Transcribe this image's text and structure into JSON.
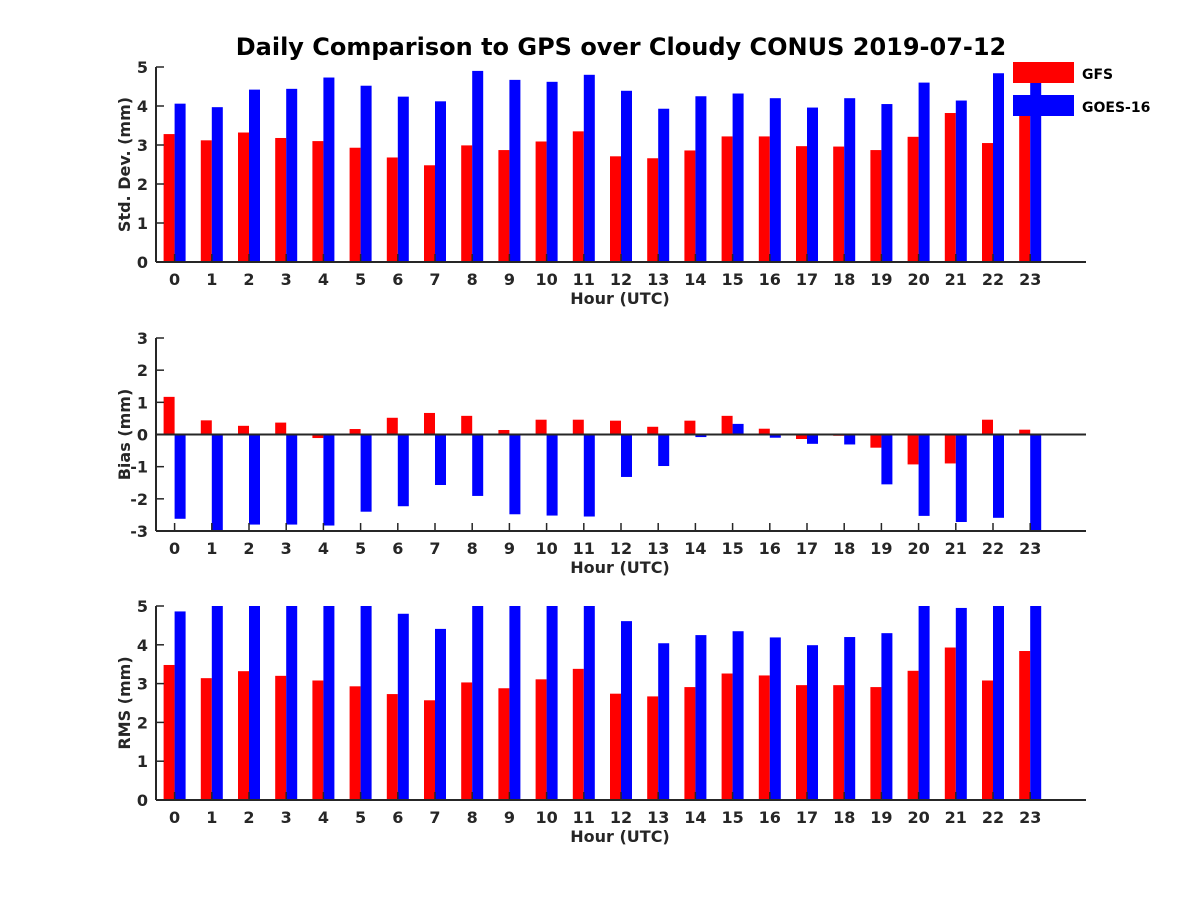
{
  "title": "Daily Comparison to GPS over Cloudy CONUS 2019-07-12",
  "legend": [
    {
      "label": "GFS",
      "color": "#ff0000"
    },
    {
      "label": "GOES-16",
      "color": "#0000ff"
    }
  ],
  "chart_data": [
    {
      "type": "bar",
      "ylabel": "Std. Dev. (mm)",
      "xlabel": "Hour (UTC)",
      "ylim": [
        0,
        5
      ],
      "yticks": [
        0,
        1,
        2,
        3,
        4,
        5
      ],
      "categories": [
        "0",
        "1",
        "2",
        "3",
        "4",
        "5",
        "6",
        "7",
        "8",
        "9",
        "10",
        "11",
        "12",
        "13",
        "14",
        "15",
        "16",
        "17",
        "18",
        "19",
        "20",
        "21",
        "22",
        "23"
      ],
      "series": [
        {
          "name": "GFS",
          "values": [
            3.28,
            3.12,
            3.32,
            3.18,
            3.1,
            2.93,
            2.68,
            2.48,
            2.99,
            2.87,
            3.09,
            3.35,
            2.71,
            2.66,
            2.86,
            3.22,
            3.22,
            2.97,
            2.96,
            2.87,
            3.21,
            3.82,
            3.05,
            3.84
          ]
        },
        {
          "name": "GOES-16",
          "values": [
            4.06,
            3.97,
            4.42,
            4.44,
            4.73,
            4.52,
            4.24,
            4.12,
            4.9,
            4.67,
            4.62,
            4.8,
            4.39,
            3.93,
            4.25,
            4.32,
            4.2,
            3.96,
            4.2,
            4.05,
            4.6,
            4.14,
            4.84,
            4.7
          ]
        }
      ]
    },
    {
      "type": "bar",
      "ylabel": "Bias (mm)",
      "xlabel": "Hour (UTC)",
      "ylim": [
        -3,
        3
      ],
      "yticks": [
        -3,
        -2,
        -1,
        0,
        1,
        2,
        3
      ],
      "categories": [
        "0",
        "1",
        "2",
        "3",
        "4",
        "5",
        "6",
        "7",
        "8",
        "9",
        "10",
        "11",
        "12",
        "13",
        "14",
        "15",
        "16",
        "17",
        "18",
        "19",
        "20",
        "21",
        "22",
        "23"
      ],
      "series": [
        {
          "name": "GFS",
          "values": [
            1.17,
            0.44,
            0.27,
            0.37,
            -0.11,
            0.17,
            0.52,
            0.67,
            0.58,
            0.14,
            0.46,
            0.46,
            0.43,
            0.24,
            0.43,
            0.58,
            0.18,
            -0.14,
            -0.04,
            -0.41,
            -0.93,
            -0.9,
            0.46,
            0.15
          ]
        },
        {
          "name": "GOES-16",
          "values": [
            -2.62,
            -3.0,
            -2.8,
            -2.8,
            -2.83,
            -2.4,
            -2.23,
            -1.57,
            -1.91,
            -2.48,
            -2.52,
            -2.55,
            -1.32,
            -0.98,
            -0.08,
            0.33,
            -0.1,
            -0.29,
            -0.31,
            -1.55,
            -2.53,
            -2.72,
            -2.59,
            -3.0
          ]
        }
      ]
    },
    {
      "type": "bar",
      "ylabel": "RMS (mm)",
      "xlabel": "Hour (UTC)",
      "ylim": [
        0,
        5
      ],
      "yticks": [
        0,
        1,
        2,
        3,
        4,
        5
      ],
      "categories": [
        "0",
        "1",
        "2",
        "3",
        "4",
        "5",
        "6",
        "7",
        "8",
        "9",
        "10",
        "11",
        "12",
        "13",
        "14",
        "15",
        "16",
        "17",
        "18",
        "19",
        "20",
        "21",
        "22",
        "23"
      ],
      "series": [
        {
          "name": "GFS",
          "values": [
            3.48,
            3.14,
            3.32,
            3.2,
            3.08,
            2.93,
            2.73,
            2.57,
            3.03,
            2.88,
            3.11,
            3.38,
            2.74,
            2.67,
            2.91,
            3.26,
            3.21,
            2.96,
            2.96,
            2.91,
            3.33,
            3.93,
            3.08,
            3.84
          ]
        },
        {
          "name": "GOES-16",
          "values": [
            4.86,
            5.0,
            5.0,
            5.0,
            5.0,
            5.0,
            4.8,
            4.41,
            5.0,
            5.0,
            5.0,
            5.0,
            4.61,
            4.04,
            4.25,
            4.35,
            4.19,
            3.99,
            4.2,
            4.3,
            5.0,
            4.95,
            5.0,
            5.0
          ]
        }
      ]
    }
  ]
}
